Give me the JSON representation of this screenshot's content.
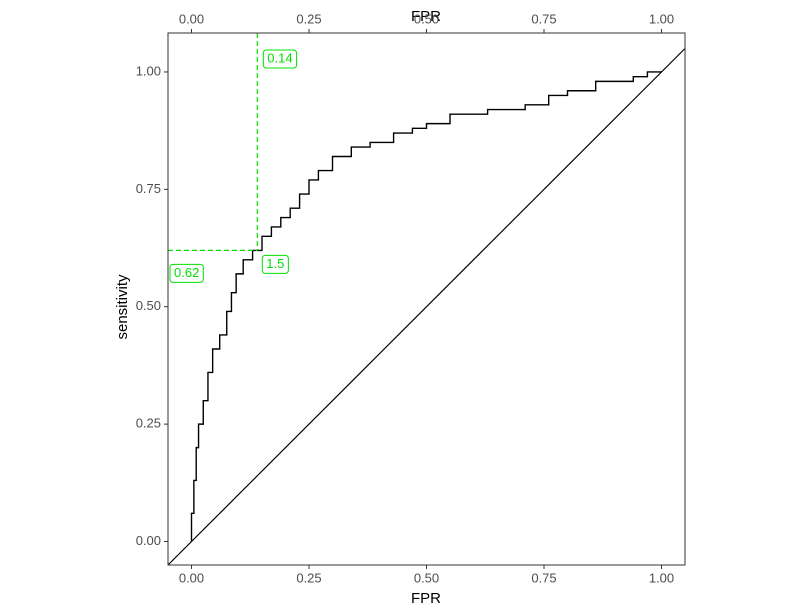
{
  "chart_data": {
    "type": "step-line",
    "xlabel": "FPR",
    "ylabel": "sensitivity",
    "x": [
      0,
      0,
      0.005,
      0.005,
      0.01,
      0.01,
      0.015,
      0.015,
      0.025,
      0.025,
      0.035,
      0.035,
      0.045,
      0.045,
      0.06,
      0.06,
      0.075,
      0.075,
      0.085,
      0.085,
      0.095,
      0.095,
      0.11,
      0.11,
      0.13,
      0.13,
      0.15,
      0.15,
      0.17,
      0.17,
      0.19,
      0.19,
      0.21,
      0.21,
      0.23,
      0.23,
      0.25,
      0.25,
      0.27,
      0.27,
      0.3,
      0.3,
      0.34,
      0.34,
      0.38,
      0.38,
      0.43,
      0.43,
      0.47,
      0.47,
      0.5,
      0.5,
      0.55,
      0.55,
      0.63,
      0.63,
      0.71,
      0.71,
      0.76,
      0.76,
      0.8,
      0.8,
      0.86,
      0.86,
      0.94,
      0.94,
      0.97,
      0.97,
      1
    ],
    "values": [
      0,
      0.06,
      0.06,
      0.13,
      0.13,
      0.2,
      0.2,
      0.25,
      0.25,
      0.3,
      0.3,
      0.36,
      0.36,
      0.41,
      0.41,
      0.44,
      0.44,
      0.49,
      0.49,
      0.53,
      0.53,
      0.57,
      0.57,
      0.6,
      0.6,
      0.62,
      0.62,
      0.65,
      0.65,
      0.67,
      0.67,
      0.69,
      0.69,
      0.71,
      0.71,
      0.74,
      0.74,
      0.77,
      0.77,
      0.79,
      0.79,
      0.82,
      0.82,
      0.84,
      0.84,
      0.85,
      0.85,
      0.87,
      0.87,
      0.88,
      0.88,
      0.89,
      0.89,
      0.91,
      0.91,
      0.92,
      0.92,
      0.93,
      0.93,
      0.95,
      0.95,
      0.96,
      0.96,
      0.98,
      0.98,
      0.99,
      0.99,
      1,
      1
    ],
    "color": "#000000",
    "reference_line": {
      "slope": 1,
      "intercept": 0
    },
    "cutoff": {
      "fpr": 0.14,
      "sensitivity": 0.62,
      "threshold": 1.5,
      "color": "#00e000"
    },
    "xlim": [
      -0.05,
      1.05
    ],
    "ylim": [
      -0.05,
      1.083
    ],
    "xticks": [
      {
        "value": 0,
        "label": "0.00"
      },
      {
        "value": 0.25,
        "label": "0.25"
      },
      {
        "value": 0.5,
        "label": "0.50"
      },
      {
        "value": 0.75,
        "label": "0.75"
      },
      {
        "value": 1,
        "label": "1.00"
      }
    ],
    "yticks": [
      {
        "value": 0,
        "label": "0.00"
      },
      {
        "value": 0.25,
        "label": "0.25"
      },
      {
        "value": 0.5,
        "label": "0.50"
      },
      {
        "value": 0.75,
        "label": "0.75"
      },
      {
        "value": 1,
        "label": "1.00"
      }
    ],
    "grid": false
  }
}
